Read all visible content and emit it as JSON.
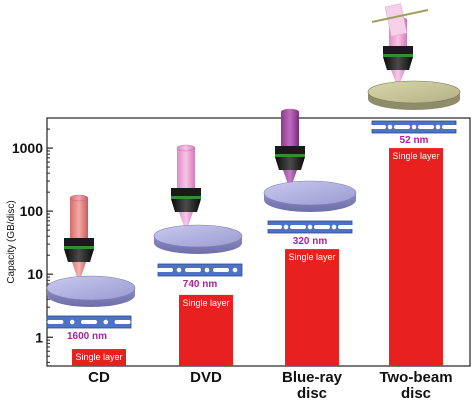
{
  "chart_data": {
    "type": "bar",
    "title": "",
    "ylabel": "Capacity (GB/disc)",
    "xlabel": "",
    "yscale": "log",
    "ylim": [
      0.35,
      3000
    ],
    "yticks": [
      1,
      10,
      100,
      1000
    ],
    "ytick_labels": [
      "1",
      "10",
      "100",
      "1000"
    ],
    "bar_color": "#e8201f",
    "categories": [
      {
        "label_lines": [
          "CD"
        ],
        "value": 0.65,
        "pitch": "1600 nm",
        "layer": "Single layer"
      },
      {
        "label_lines": [
          "DVD"
        ],
        "value": 4.7,
        "pitch": "740 nm",
        "layer": "Single layer"
      },
      {
        "label_lines": [
          "Blue-ray",
          "disc"
        ],
        "value": 25,
        "pitch": "320 nm",
        "layer": "Single layer"
      },
      {
        "label_lines": [
          "Two-beam",
          "disc"
        ],
        "value": 1000,
        "pitch": "52 nm",
        "layer": "Single layer"
      }
    ],
    "pitch_color": "#b0209a",
    "grid": false
  }
}
